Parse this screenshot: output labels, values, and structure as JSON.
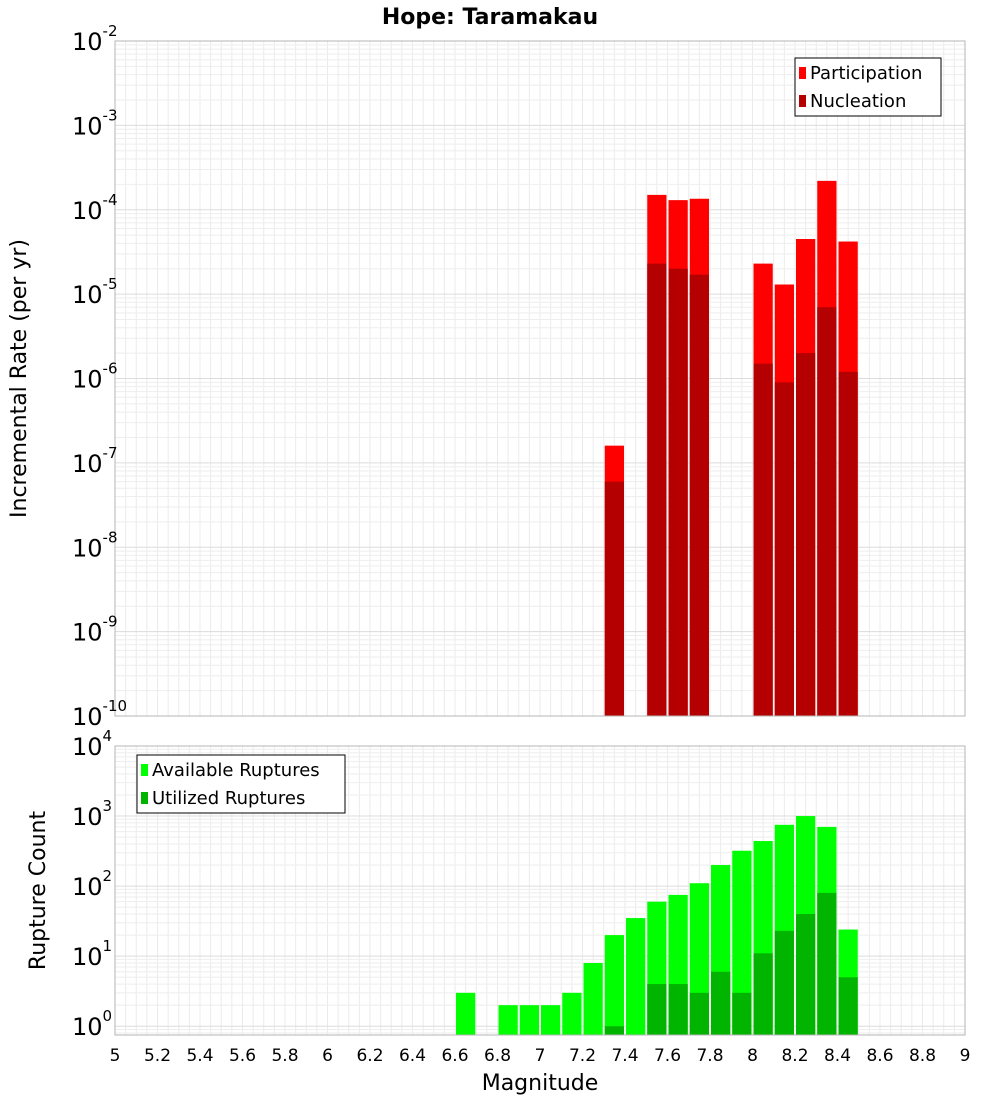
{
  "chart_data": [
    {
      "type": "bar",
      "title": "Hope: Taramakau",
      "xlabel": "",
      "ylabel": "Incremental Rate (per yr)",
      "y_scale": "log",
      "xlim": [
        5,
        9
      ],
      "ylim": [
        1e-10,
        0.01
      ],
      "grid": true,
      "legend_position": "top-right",
      "bar_width": 0.1,
      "overlay": true,
      "x": [
        7.35,
        7.55,
        7.65,
        7.75,
        8.05,
        8.15,
        8.25,
        8.35,
        8.45
      ],
      "series": [
        {
          "name": "Participation",
          "color": "#ff0000",
          "values": [
            1.6e-07,
            0.00015,
            0.00013,
            0.000135,
            2.3e-05,
            1.3e-05,
            4.5e-05,
            0.00022,
            4.2e-05
          ]
        },
        {
          "name": "Nucleation",
          "color": "#b40000",
          "values": [
            6e-08,
            2.3e-05,
            2e-05,
            1.7e-05,
            1.5e-06,
            9e-07,
            2e-06,
            7e-06,
            1.2e-06
          ]
        }
      ]
    },
    {
      "type": "bar",
      "xlabel": "Magnitude",
      "ylabel": "Rupture Count",
      "y_scale": "log",
      "xlim": [
        5,
        9
      ],
      "ylim": [
        0.75,
        10000.0
      ],
      "grid": true,
      "legend_position": "top-left",
      "bar_width": 0.1,
      "overlay": true,
      "x_ticks": [
        "5",
        "5.2",
        "5.4",
        "5.6",
        "5.8",
        "6",
        "6.2",
        "6.4",
        "6.6",
        "6.8",
        "7",
        "7.2",
        "7.4",
        "7.6",
        "7.8",
        "8",
        "8.2",
        "8.4",
        "8.6",
        "8.8",
        "9"
      ],
      "x": [
        6.65,
        6.85,
        6.95,
        7.05,
        7.15,
        7.25,
        7.35,
        7.45,
        7.55,
        7.65,
        7.75,
        7.85,
        7.95,
        8.05,
        8.15,
        8.25,
        8.35,
        8.45
      ],
      "series": [
        {
          "name": "Available Ruptures",
          "color": "#00ff00",
          "values": [
            3,
            2,
            2,
            2,
            3,
            8,
            20,
            35,
            60,
            75,
            110,
            200,
            320,
            440,
            750,
            1000,
            700,
            24
          ]
        },
        {
          "name": "Utilized Ruptures",
          "color": "#00b400",
          "values": [
            0,
            0,
            0,
            0,
            0,
            0,
            1,
            0,
            4,
            4,
            3,
            6,
            3,
            11,
            23,
            40,
            80,
            5
          ]
        }
      ]
    }
  ]
}
